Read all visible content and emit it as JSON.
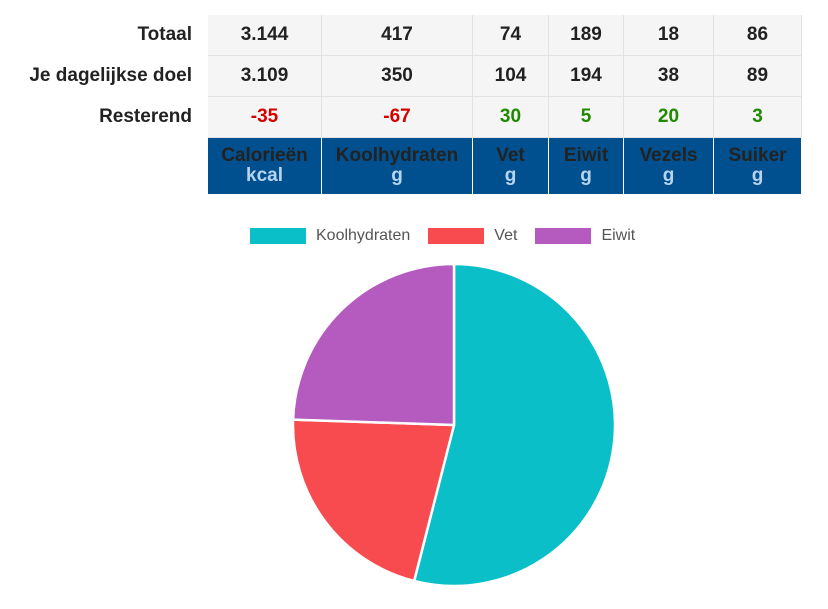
{
  "table": {
    "row_labels": {
      "total": "Totaal",
      "goal": "Je dagelijkse doel",
      "remaining": "Resterend"
    },
    "columns": [
      {
        "name": "Calorieën",
        "unit": "kcal",
        "total": "3.144",
        "goal": "3.109",
        "remaining": "-35",
        "status": "neg"
      },
      {
        "name": "Koolhydraten",
        "unit": "g",
        "total": "417",
        "goal": "350",
        "remaining": "-67",
        "status": "neg"
      },
      {
        "name": "Vet",
        "unit": "g",
        "total": "74",
        "goal": "104",
        "remaining": "30",
        "status": "pos"
      },
      {
        "name": "Eiwit",
        "unit": "g",
        "total": "189",
        "goal": "194",
        "remaining": "5",
        "status": "pos"
      },
      {
        "name": "Vezels",
        "unit": "g",
        "total": "18",
        "goal": "38",
        "remaining": "20",
        "status": "pos"
      },
      {
        "name": "Suiker",
        "unit": "g",
        "total": "86",
        "goal": "89",
        "remaining": "3",
        "status": "pos"
      }
    ],
    "colors": {
      "header_bg": "#00508f",
      "negative": "#d40000",
      "positive": "#1f8a00"
    }
  },
  "chart_data": {
    "type": "pie",
    "title": "",
    "legend_position": "top",
    "slices": [
      {
        "label": "Koolhydraten",
        "value": 417,
        "color": "#0bbfc9"
      },
      {
        "label": "Vet",
        "value": 166.5,
        "color": "#f84b4f"
      },
      {
        "label": "Eiwit",
        "value": 189,
        "color": "#b55bc0"
      }
    ]
  }
}
